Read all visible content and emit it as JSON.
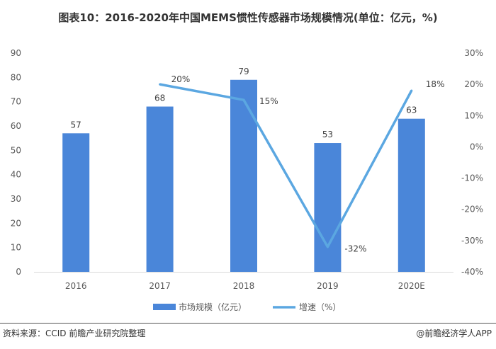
{
  "title": "图表10：2016-2020年中国MEMS惯性传感器市场规模情况(单位：亿元，%)",
  "footer": {
    "source": "资料来源：CCID 前瞻产业研究院整理",
    "credit": "@前瞻经济学人APP"
  },
  "chart_data": {
    "type": "bar+line",
    "categories": [
      "2016",
      "2017",
      "2018",
      "2019",
      "2020E"
    ],
    "series": [
      {
        "name": "市场规模（亿元）",
        "type": "bar",
        "axis": "left",
        "values": [
          57,
          68,
          79,
          53,
          63
        ],
        "color": "#4a86d9"
      },
      {
        "name": "增速（%）",
        "type": "line",
        "axis": "right",
        "values": [
          null,
          20,
          15,
          -32,
          18
        ],
        "color": "#5ba7e1"
      }
    ],
    "bar_labels": [
      "57",
      "68",
      "79",
      "53",
      "63"
    ],
    "line_labels": [
      "",
      "20%",
      "15%",
      "-32%",
      "18%"
    ],
    "y_left": {
      "min": 0,
      "max": 90,
      "step": 10,
      "ticks": [
        "0",
        "10",
        "20",
        "30",
        "40",
        "50",
        "60",
        "70",
        "80",
        "90"
      ]
    },
    "y_right": {
      "min": -40,
      "max": 30,
      "step": 10,
      "ticks": [
        "-40%",
        "-30%",
        "-20%",
        "-10%",
        "0%",
        "10%",
        "20%",
        "30%"
      ]
    },
    "grid": false,
    "legend": "bottom-center"
  }
}
